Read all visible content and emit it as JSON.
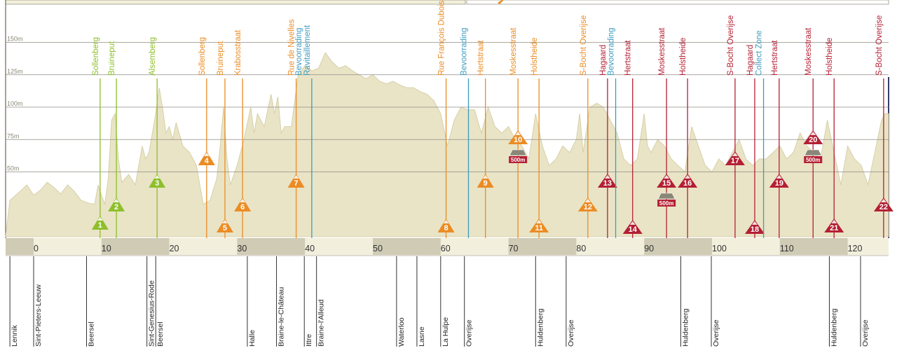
{
  "chart_data": {
    "type": "area",
    "title": "",
    "xlabel": "",
    "ylabel": "",
    "x_unit": "km",
    "xlim": [
      -3.5,
      125.5
    ],
    "ylim": [
      -118,
      232
    ],
    "colors": {
      "profile_fill": "#e9e4c6",
      "profile_line": "#d6d0a8",
      "green": "#8ebf2b",
      "orange": "#eb8c24",
      "red": "#b41f33",
      "blue": "#3c9cc0",
      "km_band_dark": "#cfcbb5",
      "km_band_light": "#f2efdc"
    },
    "elevation_gridlines": [
      {
        "value": 150,
        "label": "150m"
      },
      {
        "value": 125,
        "label": "125m"
      },
      {
        "value": 100,
        "label": "100m"
      },
      {
        "value": 75,
        "label": "75m"
      },
      {
        "value": 50,
        "label": "50m"
      }
    ],
    "km_ticks": [
      {
        "km": 0,
        "label": "0"
      },
      {
        "km": 10,
        "label": "10"
      },
      {
        "km": 20,
        "label": "20"
      },
      {
        "km": 30,
        "label": "30"
      },
      {
        "km": 40,
        "label": "40"
      },
      {
        "km": 50,
        "label": "50"
      },
      {
        "km": 60,
        "label": "60"
      },
      {
        "km": 70,
        "label": "70"
      },
      {
        "km": 80,
        "label": "80"
      },
      {
        "km": 90,
        "label": "90"
      },
      {
        "km": 100,
        "label": "100"
      },
      {
        "km": 110,
        "label": "110"
      },
      {
        "km": 120,
        "label": "120"
      }
    ],
    "profile": [
      [
        -3.5,
        28
      ],
      [
        -2,
        35
      ],
      [
        -1,
        40
      ],
      [
        0,
        32
      ],
      [
        1,
        36
      ],
      [
        2,
        42
      ],
      [
        3,
        38
      ],
      [
        4,
        33
      ],
      [
        5,
        40
      ],
      [
        6,
        35
      ],
      [
        7,
        28
      ],
      [
        8,
        26
      ],
      [
        9,
        25
      ],
      [
        9.5,
        40
      ],
      [
        10,
        32
      ],
      [
        10.5,
        25
      ],
      [
        11,
        45
      ],
      [
        11.5,
        90
      ],
      [
        12,
        95
      ],
      [
        12.5,
        60
      ],
      [
        13,
        42
      ],
      [
        14,
        48
      ],
      [
        15,
        40
      ],
      [
        16,
        70
      ],
      [
        16.5,
        60
      ],
      [
        17,
        65
      ],
      [
        17.5,
        80
      ],
      [
        18,
        95
      ],
      [
        18.5,
        115
      ],
      [
        19,
        100
      ],
      [
        19.5,
        80
      ],
      [
        20,
        85
      ],
      [
        20.5,
        75
      ],
      [
        21,
        88
      ],
      [
        22,
        70
      ],
      [
        23,
        65
      ],
      [
        24,
        55
      ],
      [
        25,
        25
      ],
      [
        26,
        28
      ],
      [
        27,
        45
      ],
      [
        27.5,
        70
      ],
      [
        28,
        100
      ],
      [
        28.5,
        60
      ],
      [
        29,
        40
      ],
      [
        30,
        55
      ],
      [
        31,
        75
      ],
      [
        32,
        100
      ],
      [
        32.5,
        80
      ],
      [
        33,
        95
      ],
      [
        34,
        85
      ],
      [
        35,
        110
      ],
      [
        35.5,
        95
      ],
      [
        36,
        108
      ],
      [
        36.5,
        80
      ],
      [
        37,
        85
      ],
      [
        38,
        85
      ],
      [
        39,
        125
      ],
      [
        40,
        132
      ],
      [
        41,
        128
      ],
      [
        42,
        130
      ],
      [
        43,
        142
      ],
      [
        44,
        135
      ],
      [
        45,
        130
      ],
      [
        46,
        132
      ],
      [
        47,
        128
      ],
      [
        48,
        125
      ],
      [
        49,
        122
      ],
      [
        50,
        125
      ],
      [
        51,
        120
      ],
      [
        52,
        118
      ],
      [
        53,
        120
      ],
      [
        54,
        117
      ],
      [
        55,
        115
      ],
      [
        56,
        115
      ],
      [
        57,
        112
      ],
      [
        58,
        110
      ],
      [
        59,
        105
      ],
      [
        60,
        95
      ],
      [
        61,
        70
      ],
      [
        62,
        90
      ],
      [
        63,
        100
      ],
      [
        64,
        98
      ],
      [
        65,
        98
      ],
      [
        66,
        80
      ],
      [
        67,
        100
      ],
      [
        68,
        85
      ],
      [
        69,
        80
      ],
      [
        70,
        85
      ],
      [
        71,
        75
      ],
      [
        72,
        70
      ],
      [
        73,
        60
      ],
      [
        74,
        95
      ],
      [
        75,
        70
      ],
      [
        76,
        55
      ],
      [
        77,
        60
      ],
      [
        78,
        70
      ],
      [
        79,
        65
      ],
      [
        80,
        75
      ],
      [
        80.5,
        95
      ],
      [
        81,
        65
      ],
      [
        82,
        100
      ],
      [
        83,
        103
      ],
      [
        84,
        100
      ],
      [
        85,
        90
      ],
      [
        86,
        80
      ],
      [
        87,
        60
      ],
      [
        88,
        55
      ],
      [
        89,
        60
      ],
      [
        90,
        95
      ],
      [
        90.5,
        70
      ],
      [
        91,
        65
      ],
      [
        92,
        75
      ],
      [
        93,
        70
      ],
      [
        94,
        60
      ],
      [
        95,
        55
      ],
      [
        96,
        50
      ],
      [
        97,
        85
      ],
      [
        98,
        70
      ],
      [
        99,
        55
      ],
      [
        100,
        50
      ],
      [
        101,
        60
      ],
      [
        102,
        55
      ],
      [
        103,
        65
      ],
      [
        104,
        75
      ],
      [
        105,
        60
      ],
      [
        106,
        55
      ],
      [
        107,
        60
      ],
      [
        108,
        60
      ],
      [
        109,
        65
      ],
      [
        110,
        70
      ],
      [
        111,
        60
      ],
      [
        112,
        65
      ],
      [
        113,
        80
      ],
      [
        114,
        70
      ],
      [
        115,
        65
      ],
      [
        116,
        60
      ],
      [
        117,
        90
      ],
      [
        118,
        65
      ],
      [
        119,
        40
      ],
      [
        120,
        70
      ],
      [
        121,
        60
      ],
      [
        122,
        55
      ],
      [
        123,
        40
      ],
      [
        124,
        65
      ],
      [
        125,
        90
      ],
      [
        125.5,
        95
      ]
    ],
    "markers": [
      {
        "name": "Sollenberg",
        "km": 9.8,
        "color": "green",
        "num": "1",
        "climb": true,
        "label_y": 0
      },
      {
        "name": "Bruineput",
        "km": 12.2,
        "color": "green",
        "num": "2",
        "climb": true,
        "label_y": 0
      },
      {
        "name": "Alsemberg",
        "km": 18.2,
        "color": "green",
        "num": "3",
        "climb": true,
        "label_y": 0
      },
      {
        "name": "Sollenberg",
        "km": 25.5,
        "color": "orange",
        "num": "4",
        "climb": true,
        "label_y": 0
      },
      {
        "name": "Bruineput",
        "km": 28.2,
        "color": "orange",
        "num": "5",
        "climb": true,
        "label_y": 0
      },
      {
        "name": "Krabosstraat",
        "km": 30.8,
        "color": "orange",
        "num": "6",
        "climb": true,
        "label_y": 0
      },
      {
        "name": "Rue de Nivelles",
        "km": 38.7,
        "color": "orange",
        "num": "7",
        "climb": true,
        "label_y": 0
      },
      {
        "name": "Bevoorrading\nRavitaillement",
        "km": 41.0,
        "color": "blue",
        "num": "",
        "climb": false,
        "label_y": 0
      },
      {
        "name": "Rue François Dubois",
        "km": 60.8,
        "color": "orange",
        "num": "8",
        "climb": true,
        "label_y": 1
      },
      {
        "name": "Bevoorrading",
        "km": 64.1,
        "color": "blue",
        "num": "",
        "climb": false,
        "label_y": 0
      },
      {
        "name": "Hertstraat",
        "km": 66.6,
        "color": "orange",
        "num": "9",
        "climb": true,
        "label_y": 0
      },
      {
        "name": "Moskesstraat",
        "km": 71.4,
        "color": "orange",
        "num": "10",
        "climb": true,
        "label_y": 0,
        "cobbles": "500m"
      },
      {
        "name": "Holstheide",
        "km": 74.5,
        "color": "orange",
        "num": "11",
        "climb": true,
        "label_y": 0
      },
      {
        "name": "S-Bocht Overijse",
        "km": 81.7,
        "color": "orange",
        "num": "12",
        "climb": true,
        "label_y": 0
      },
      {
        "name": "Hagaard",
        "km": 84.6,
        "color": "red",
        "num": "13",
        "climb": true,
        "label_y": 1
      },
      {
        "name": "Bevoorrading",
        "km": 85.8,
        "color": "blue",
        "num": "",
        "climb": false,
        "label_y": 0
      },
      {
        "name": "Hertstraat",
        "km": 88.3,
        "color": "red",
        "num": "14",
        "climb": true,
        "label_y": 0
      },
      {
        "name": "Moskesstraat",
        "km": 93.3,
        "color": "red",
        "num": "15",
        "climb": true,
        "label_y": 0,
        "cobbles": "500m"
      },
      {
        "name": "Holstheide",
        "km": 96.4,
        "color": "red",
        "num": "16",
        "climb": true,
        "label_y": 0
      },
      {
        "name": "S-Bocht Overijse",
        "km": 103.4,
        "color": "red",
        "num": "17",
        "climb": true,
        "label_y": 0
      },
      {
        "name": "Hagaard",
        "km": 106.3,
        "color": "red",
        "num": "18",
        "climb": true,
        "label_y": 1
      },
      {
        "name": "Collect Zone",
        "km": 107.6,
        "color": "blue",
        "num": "",
        "climb": false,
        "label_y": 0
      },
      {
        "name": "Hertstraat",
        "km": 109.9,
        "color": "red",
        "num": "19",
        "climb": true,
        "label_y": 0
      },
      {
        "name": "Moskesstraat",
        "km": 114.9,
        "color": "red",
        "num": "20",
        "climb": true,
        "label_y": 0,
        "cobbles": "500m"
      },
      {
        "name": "Holstheide",
        "km": 118.0,
        "color": "red",
        "num": "21",
        "climb": true,
        "label_y": 0
      },
      {
        "name": "S-Bocht Overijse",
        "km": 125.3,
        "color": "red",
        "num": "22",
        "climb": true,
        "label_y": 0
      }
    ],
    "towns": [
      {
        "name": "Lennik",
        "km": -3.5
      },
      {
        "name": "Sint-Pieters-Leeuw",
        "km": 0.0
      },
      {
        "name": "Beersel",
        "km": 7.8
      },
      {
        "name": "Sint-Genesius-Rode",
        "km": 16.7
      },
      {
        "name": "Beersel",
        "km": 18.0
      },
      {
        "name": "Halle",
        "km": 31.5
      },
      {
        "name": "Braine-le-Château",
        "km": 35.8
      },
      {
        "name": "Ittre",
        "km": 39.9
      },
      {
        "name": "Braine-l'Alleud",
        "km": 41.7
      },
      {
        "name": "Waterloo",
        "km": 53.5
      },
      {
        "name": "Lasne",
        "km": 56.5
      },
      {
        "name": "La Hulpe",
        "km": 60.0
      },
      {
        "name": "Overijse",
        "km": 63.5
      },
      {
        "name": "Huldenberg",
        "km": 74.0
      },
      {
        "name": "Overijse",
        "km": 78.5
      },
      {
        "name": "Huldenberg",
        "km": 95.4
      },
      {
        "name": "Overijse",
        "km": 99.9
      },
      {
        "name": "Huldenberg",
        "km": 117.3
      },
      {
        "name": "Overijse",
        "km": 121.9
      }
    ]
  }
}
